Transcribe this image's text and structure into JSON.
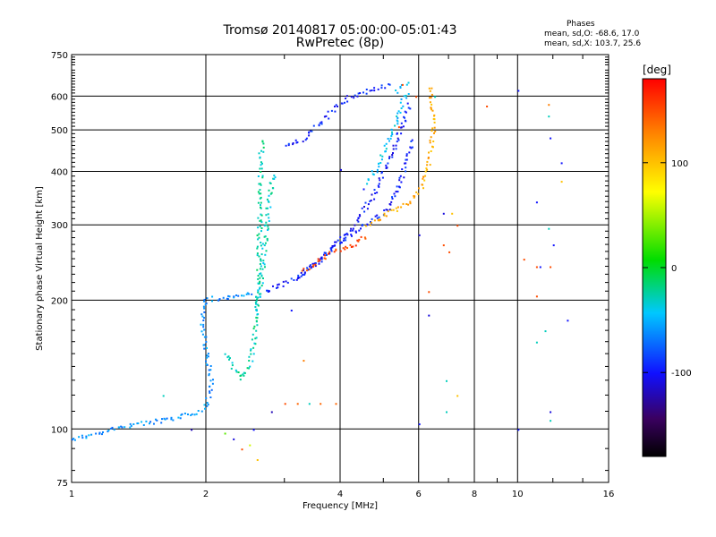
{
  "titles": {
    "line1": "Tromsø 20140817 05:00:00-05:01:43",
    "line2": "RwPretec (8p)"
  },
  "stats": {
    "heading": "Phases",
    "o_line": "mean, sd,O: -68.6, 17.0",
    "x_line": "mean, sd,X: 103.7, 25.6"
  },
  "colorbar": {
    "unit": "[deg]",
    "ticks": [
      {
        "value": 100,
        "label": "100"
      },
      {
        "value": 0,
        "label": "0"
      },
      {
        "value": -100,
        "label": "-100"
      }
    ],
    "range": [
      -180,
      180
    ]
  },
  "chart_data": {
    "type": "scatter",
    "xlabel": "Frequency [MHz]",
    "ylabel": "Stationary phase Virtual Height [km]",
    "xscale": "log",
    "yscale": "log",
    "xlim": [
      1,
      16
    ],
    "ylim": [
      75,
      750
    ],
    "grid": true,
    "x_ticks": [
      {
        "value": 1,
        "label": "1"
      },
      {
        "value": 2,
        "label": "2"
      },
      {
        "value": 4,
        "label": "4"
      },
      {
        "value": 6,
        "label": "6"
      },
      {
        "value": 8,
        "label": "8"
      },
      {
        "value": 10,
        "label": "10"
      },
      {
        "value": 16,
        "label": "16"
      }
    ],
    "y_ticks": [
      {
        "value": 75,
        "label": "75"
      },
      {
        "value": 100,
        "label": "100"
      },
      {
        "value": 200,
        "label": "200"
      },
      {
        "value": 300,
        "label": "300"
      },
      {
        "value": 400,
        "label": "400"
      },
      {
        "value": 500,
        "label": "500"
      },
      {
        "value": 600,
        "label": "600"
      },
      {
        "value": 750,
        "label": "750"
      }
    ],
    "color_scale": "phase_deg",
    "traces": [
      {
        "points": [
          [
            1.0,
            95
          ],
          [
            1.15,
            98
          ],
          [
            1.3,
            102
          ],
          [
            1.5,
            104
          ],
          [
            1.7,
            106
          ],
          [
            1.9,
            110
          ],
          [
            2.0,
            114
          ],
          [
            2.05,
            130
          ],
          [
            2.0,
            150
          ],
          [
            1.95,
            180
          ],
          [
            2.0,
            202
          ],
          [
            2.2,
            203
          ],
          [
            2.4,
            205
          ],
          [
            2.55,
            210
          ]
        ],
        "phase": -60
      },
      {
        "points": [
          [
            2.2,
            150
          ],
          [
            2.3,
            140
          ],
          [
            2.4,
            132
          ],
          [
            2.5,
            140
          ],
          [
            2.55,
            160
          ],
          [
            2.6,
            200
          ],
          [
            2.62,
            240
          ],
          [
            2.63,
            300
          ],
          [
            2.64,
            380
          ],
          [
            2.65,
            440
          ],
          [
            2.66,
            480
          ]
        ],
        "phase": -25
      },
      {
        "points": [
          [
            2.6,
            190
          ],
          [
            2.65,
            220
          ],
          [
            2.7,
            270
          ],
          [
            2.75,
            330
          ],
          [
            2.8,
            380
          ],
          [
            2.85,
            400
          ]
        ],
        "phase": -30
      },
      {
        "points": [
          [
            2.7,
            210
          ],
          [
            3.0,
            220
          ],
          [
            3.3,
            232
          ],
          [
            3.6,
            250
          ],
          [
            3.9,
            272
          ],
          [
            4.3,
            290
          ],
          [
            4.7,
            305
          ],
          [
            5.1,
            330
          ],
          [
            5.4,
            370
          ],
          [
            5.6,
            420
          ],
          [
            5.8,
            480
          ]
        ],
        "phase": -95
      },
      {
        "points": [
          [
            3.2,
            225
          ],
          [
            3.5,
            245
          ],
          [
            3.9,
            270
          ],
          [
            4.3,
            300
          ],
          [
            4.7,
            350
          ],
          [
            5.0,
            400
          ],
          [
            5.3,
            460
          ],
          [
            5.5,
            520
          ],
          [
            5.7,
            580
          ]
        ],
        "phase": -100
      },
      {
        "points": [
          [
            3.3,
            235
          ],
          [
            3.5,
            245
          ],
          [
            3.8,
            258
          ],
          [
            4.1,
            266
          ],
          [
            4.4,
            275
          ],
          [
            4.6,
            285
          ]
        ],
        "phase": 150
      },
      {
        "points": [
          [
            4.6,
            300
          ],
          [
            5.0,
            315
          ],
          [
            5.4,
            330
          ],
          [
            5.8,
            345
          ],
          [
            6.1,
            370
          ],
          [
            6.3,
            420
          ],
          [
            6.4,
            470
          ],
          [
            6.45,
            520
          ],
          [
            6.4,
            580
          ],
          [
            6.3,
            640
          ]
        ],
        "phase": 110
      },
      {
        "points": [
          [
            3.0,
            460
          ],
          [
            3.3,
            480
          ],
          [
            3.6,
            520
          ],
          [
            3.9,
            570
          ],
          [
            4.2,
            600
          ],
          [
            4.6,
            620
          ],
          [
            4.9,
            635
          ],
          [
            5.2,
            640
          ]
        ],
        "phase": -95
      },
      {
        "points": [
          [
            4.6,
            380
          ],
          [
            4.9,
            420
          ],
          [
            5.1,
            470
          ],
          [
            5.3,
            520
          ],
          [
            5.5,
            580
          ],
          [
            5.65,
            620
          ]
        ],
        "phase": -45
      },
      {
        "points": [
          [
            5.3,
            620
          ],
          [
            5.5,
            640
          ],
          [
            5.7,
            650
          ]
        ],
        "phase": -40
      }
    ],
    "scatter_points": [
      {
        "x": 3.3,
        "y": 145,
        "phase": 130
      },
      {
        "x": 3.2,
        "y": 115,
        "phase": 140
      },
      {
        "x": 3.6,
        "y": 115,
        "phase": 140
      },
      {
        "x": 3.9,
        "y": 115,
        "phase": 140
      },
      {
        "x": 3.4,
        "y": 115,
        "phase": -30
      },
      {
        "x": 3.1,
        "y": 190,
        "phase": -100
      },
      {
        "x": 3.0,
        "y": 115,
        "phase": 150
      },
      {
        "x": 2.8,
        "y": 110,
        "phase": -120
      },
      {
        "x": 2.5,
        "y": 92,
        "phase": 60
      },
      {
        "x": 2.4,
        "y": 90,
        "phase": 150
      },
      {
        "x": 2.3,
        "y": 95,
        "phase": -110
      },
      {
        "x": 2.55,
        "y": 100,
        "phase": -100
      },
      {
        "x": 2.6,
        "y": 85,
        "phase": 100
      },
      {
        "x": 2.2,
        "y": 98,
        "phase": 30
      },
      {
        "x": 1.85,
        "y": 100,
        "phase": -120
      },
      {
        "x": 1.6,
        "y": 120,
        "phase": -30
      },
      {
        "x": 6.0,
        "y": 285,
        "phase": -110
      },
      {
        "x": 6.3,
        "y": 210,
        "phase": 150
      },
      {
        "x": 6.3,
        "y": 185,
        "phase": -110
      },
      {
        "x": 6.8,
        "y": 320,
        "phase": -110
      },
      {
        "x": 7.1,
        "y": 320,
        "phase": 100
      },
      {
        "x": 6.8,
        "y": 270,
        "phase": 150
      },
      {
        "x": 7.0,
        "y": 260,
        "phase": 150
      },
      {
        "x": 7.3,
        "y": 300,
        "phase": 150
      },
      {
        "x": 6.9,
        "y": 130,
        "phase": -30
      },
      {
        "x": 7.3,
        "y": 120,
        "phase": 100
      },
      {
        "x": 6.9,
        "y": 110,
        "phase": -30
      },
      {
        "x": 6.0,
        "y": 103,
        "phase": -100
      },
      {
        "x": 8.5,
        "y": 570,
        "phase": 150
      },
      {
        "x": 10.0,
        "y": 620,
        "phase": -100
      },
      {
        "x": 10.0,
        "y": 100,
        "phase": -100
      },
      {
        "x": 10.3,
        "y": 250,
        "phase": 150
      },
      {
        "x": 11.0,
        "y": 340,
        "phase": -100
      },
      {
        "x": 11.0,
        "y": 240,
        "phase": 150
      },
      {
        "x": 11.2,
        "y": 240,
        "phase": -100
      },
      {
        "x": 11.0,
        "y": 205,
        "phase": 150
      },
      {
        "x": 11.0,
        "y": 160,
        "phase": -30
      },
      {
        "x": 11.5,
        "y": 170,
        "phase": -30
      },
      {
        "x": 11.7,
        "y": 575,
        "phase": 130
      },
      {
        "x": 11.7,
        "y": 540,
        "phase": -30
      },
      {
        "x": 11.8,
        "y": 480,
        "phase": -100
      },
      {
        "x": 12.0,
        "y": 270,
        "phase": -100
      },
      {
        "x": 11.8,
        "y": 240,
        "phase": 150
      },
      {
        "x": 11.7,
        "y": 295,
        "phase": -30
      },
      {
        "x": 12.5,
        "y": 380,
        "phase": 100
      },
      {
        "x": 12.5,
        "y": 420,
        "phase": -100
      },
      {
        "x": 12.9,
        "y": 180,
        "phase": -100
      },
      {
        "x": 11.8,
        "y": 110,
        "phase": -110
      },
      {
        "x": 11.8,
        "y": 105,
        "phase": -30
      },
      {
        "x": 5.4,
        "y": 510,
        "phase": 150
      },
      {
        "x": 5.9,
        "y": 600,
        "phase": 150
      },
      {
        "x": 5.5,
        "y": 640,
        "phase": 150
      },
      {
        "x": 6.5,
        "y": 600,
        "phase": -30
      },
      {
        "x": 4.0,
        "y": 405,
        "phase": -110
      },
      {
        "x": 4.5,
        "y": 365,
        "phase": -100
      }
    ]
  }
}
